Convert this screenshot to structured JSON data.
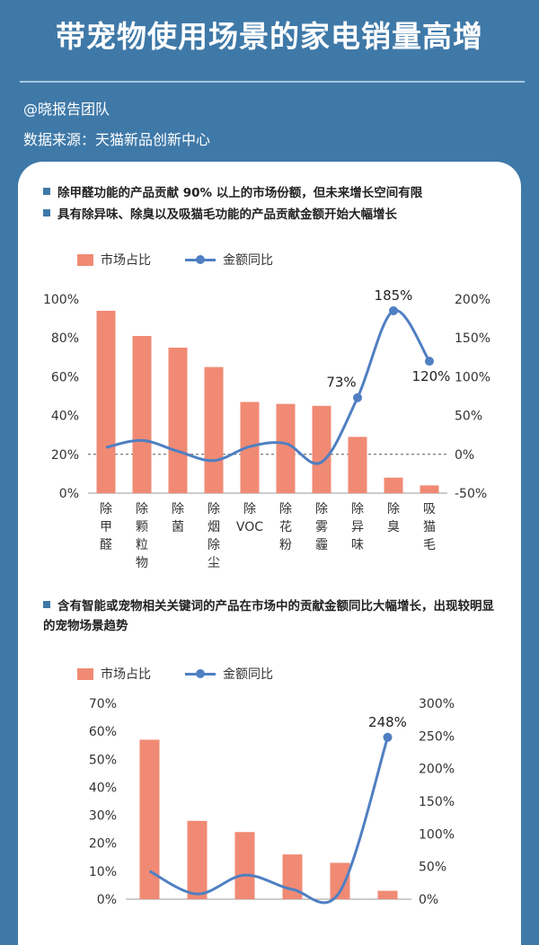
{
  "header": {
    "title": "带宠物使用场景的家电销量高增",
    "author": "@晓报告团队",
    "source": "数据来源：天猫新品创新中心"
  },
  "colors": {
    "bar": "#f08a74",
    "line": "#4f7fc2",
    "bg": "#3f79a8"
  },
  "chart_data": [
    {
      "type": "bar",
      "notes": [
        "除甲醛功能的产品贡献 90% 以上的市场份额，但未来增长空间有限",
        "具有除异味、除臭以及吸猫毛功能的产品贡献金额开始大幅增长"
      ],
      "legend": [
        "市场占比",
        "金额同比"
      ],
      "categories": [
        "除甲醛",
        "除颗粒物",
        "除菌",
        "除烟除尘",
        "除VOC",
        "除花粉",
        "除雾霾",
        "除异味",
        "除臭",
        "吸猫毛"
      ],
      "series": [
        {
          "name": "市场占比",
          "axis": "left",
          "values": [
            94,
            81,
            75,
            65,
            47,
            46,
            45,
            29,
            8,
            4
          ]
        },
        {
          "name": "金额同比",
          "axis": "right",
          "kind": "line",
          "values": [
            9,
            18,
            4,
            -8,
            10,
            14,
            -10,
            73,
            185,
            120
          ]
        }
      ],
      "data_labels": {
        "7": "73%",
        "8": "185%",
        "9": "120%"
      },
      "left_ticks": [
        "0%",
        "20%",
        "40%",
        "60%",
        "80%",
        "100%"
      ],
      "right_ticks": [
        "-50%",
        "0%",
        "50%",
        "100%",
        "150%",
        "200%"
      ],
      "ylim_left": [
        0,
        100
      ],
      "ylim_right": [
        -50,
        200
      ]
    },
    {
      "type": "bar",
      "notes": [
        "含有智能或宠物相关关键词的产品在市场中的贡献金额同比大幅增长，出现较明显的宠物场景趋势"
      ],
      "legend": [
        "市场占比",
        "金额同比"
      ],
      "categories": [
        "",
        "",
        "",
        "",
        "",
        ""
      ],
      "series": [
        {
          "name": "市场占比",
          "axis": "left",
          "values": [
            57,
            28,
            24,
            16,
            13,
            3
          ]
        },
        {
          "name": "金额同比",
          "axis": "right",
          "kind": "line",
          "values": [
            43,
            8,
            37,
            15,
            12,
            248
          ]
        }
      ],
      "data_labels": {
        "5": "248%"
      },
      "left_ticks": [
        "0%",
        "10%",
        "20%",
        "30%",
        "40%",
        "50%",
        "60%",
        "70%"
      ],
      "right_ticks": [
        "0%",
        "50%",
        "100%",
        "150%",
        "200%",
        "250%",
        "300%"
      ],
      "ylim_left": [
        0,
        70
      ],
      "ylim_right": [
        0,
        300
      ]
    }
  ]
}
